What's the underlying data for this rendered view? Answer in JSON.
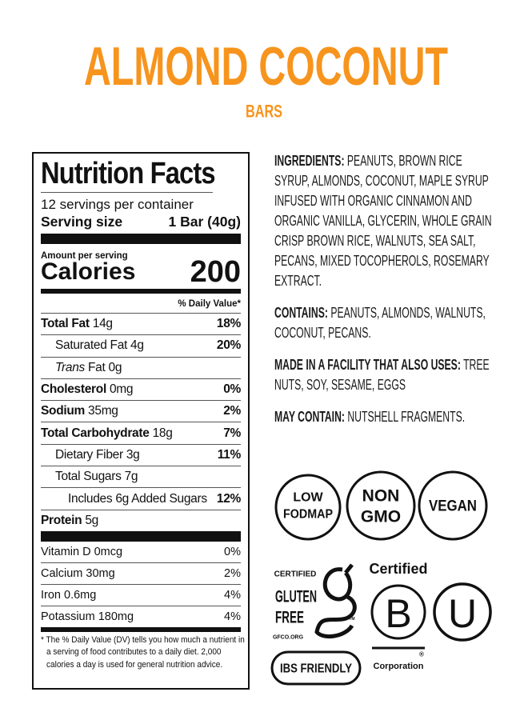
{
  "header": {
    "title": "ALMOND COCONUT",
    "subtitle": "BARS"
  },
  "nutrition_facts": {
    "title": "Nutrition Facts",
    "servings": "12 servings per container",
    "serving_size": {
      "label": "Serving size",
      "value": "1 Bar (40g)"
    },
    "amount_per_serving": "Amount per serving",
    "calories": {
      "label": "Calories",
      "value": "200"
    },
    "daily_value_header": "% Daily Value*",
    "nutrients": [
      {
        "label": "Total Fat",
        "amount": "14g",
        "dv": "18%"
      },
      {
        "label": "Saturated Fat",
        "amount": "4g",
        "dv": "20%"
      },
      {
        "label_italic": "Trans",
        "label": "Fat",
        "amount": "0g"
      },
      {
        "label": "Cholesterol",
        "amount": "0mg",
        "dv": "0%"
      },
      {
        "label": "Sodium",
        "amount": "35mg",
        "dv": "2%"
      },
      {
        "label": "Total Carbohydrate",
        "amount": "18g",
        "dv": "7%"
      },
      {
        "label": "Dietary Fiber",
        "amount": "3g",
        "dv": "11%"
      },
      {
        "label": "Total Sugars",
        "amount": "7g"
      },
      {
        "label": "Includes 6g Added Sugars",
        "dv": "12%"
      },
      {
        "label": "Protein",
        "amount": "5g"
      }
    ],
    "vitamins": [
      {
        "label": "Vitamin D 0mcg",
        "dv": "0%"
      },
      {
        "label": "Calcium 30mg",
        "dv": "2%"
      },
      {
        "label": "Iron 0.6mg",
        "dv": "4%"
      },
      {
        "label": "Potassium 180mg",
        "dv": "4%"
      }
    ],
    "footnote": "* The % Daily Value (DV) tells you how much a nutrient in a serving of food contributes to a daily diet. 2,000 calories a day is used for general nutrition advice."
  },
  "statements": [
    {
      "label": "INGREDIENTS:",
      "text": "PEANUTS, BROWN RICE SYRUP, ALMONDS, COCONUT, MAPLE SYRUP INFUSED WITH ORGANIC CINNAMON AND ORGANIC VANILLA, GLYCERIN, WHOLE GRAIN CRISP BROWN RICE, WALNUTS, SEA SALT, PECANS, MIXED TOCOPHEROLS, ROSEMARY EXTRACT."
    },
    {
      "label": "CONTAINS:",
      "text": "PEANUTS, ALMONDS, WALNUTS, COCONUT, PECANS."
    },
    {
      "label": "MADE IN A FACILITY THAT ALSO USES:",
      "text": "TREE NUTS, SOY, SESAME, EGGS"
    },
    {
      "label": "MAY CONTAIN:",
      "text": "NUTSHELL FRAGMENTS."
    }
  ],
  "badges": {
    "low_fodmap": [
      "LOW",
      "FODMAP"
    ],
    "non_gmo": [
      "NON",
      "GMO"
    ],
    "vegan": "VEGAN",
    "gluten_free": {
      "certified": "CERTIFIED",
      "lines": [
        "GLUTEN",
        "FREE"
      ],
      "tm": "TM",
      "site": "GFCO.ORG"
    },
    "ibs_friendly": "IBS FRIENDLY",
    "b_corp": {
      "top": "Certified",
      "letter": "B",
      "registered": "®",
      "bottom": "Corporation"
    },
    "kosher": "U"
  }
}
